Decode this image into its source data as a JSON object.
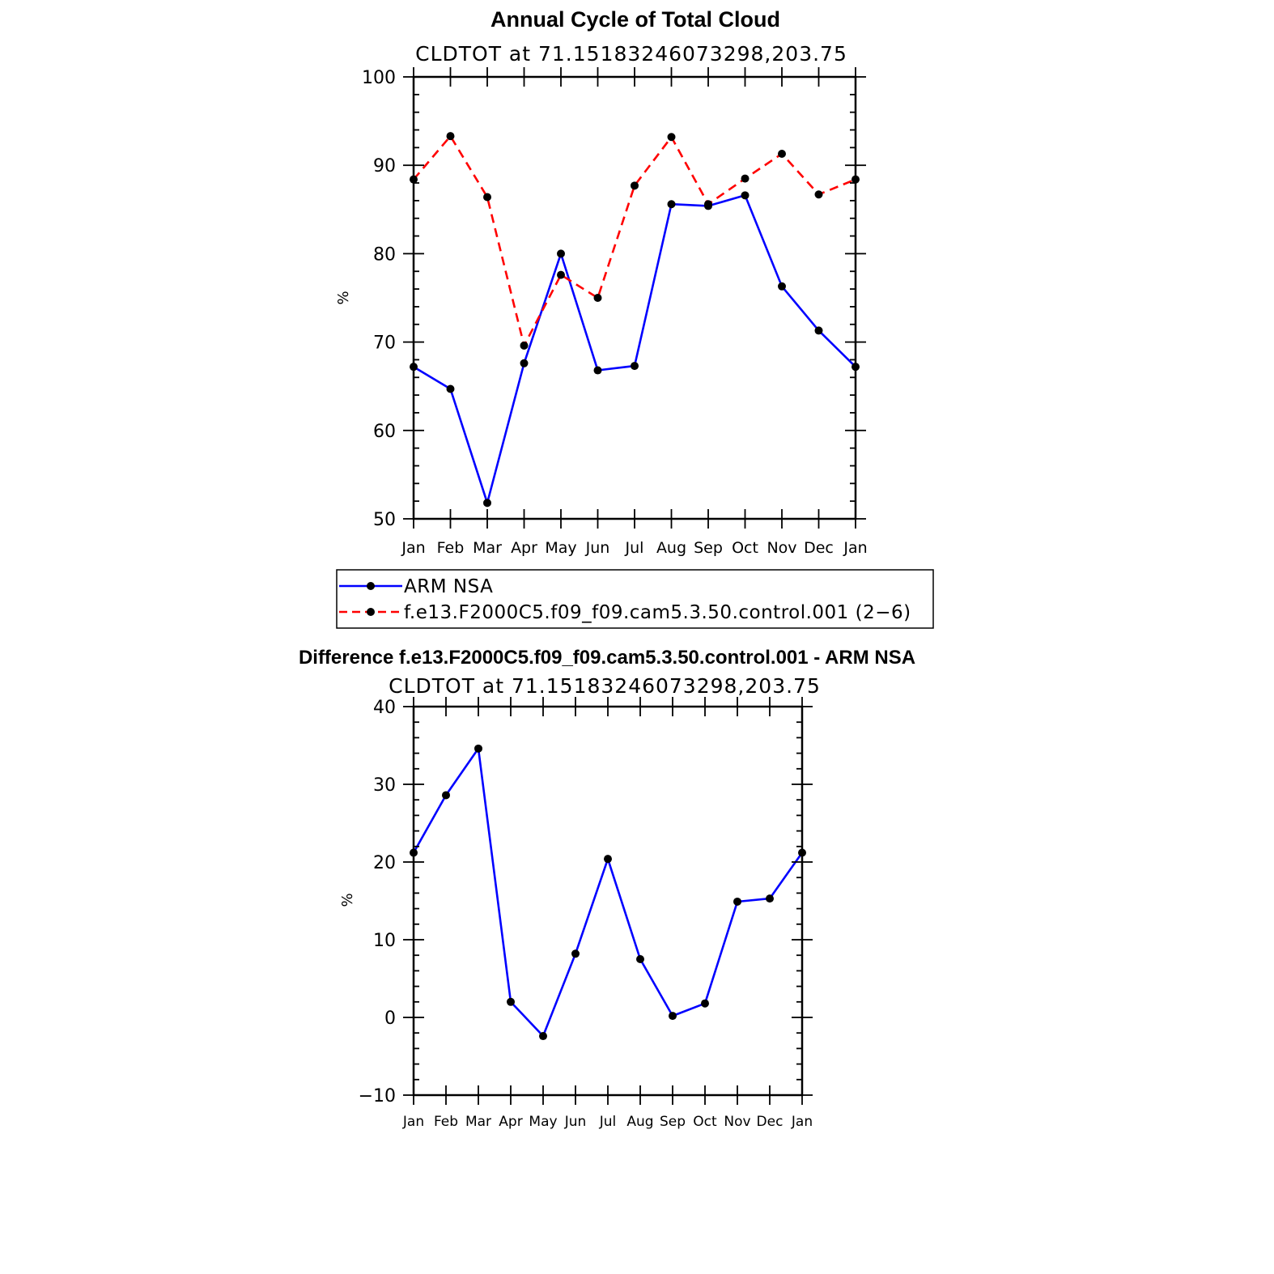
{
  "chart_data": [
    {
      "type": "line",
      "title": "Annual Cycle of Total Cloud",
      "subtitle": "CLDTOT at 71.15183246073298,203.75",
      "xlabel": "",
      "ylabel": "%",
      "ylim": [
        50,
        100
      ],
      "yticks": [
        "100",
        "90",
        "80",
        "70",
        "60",
        "50"
      ],
      "categories": [
        "Jan",
        "Feb",
        "Mar",
        "Apr",
        "May",
        "Jun",
        "Jul",
        "Aug",
        "Sep",
        "Oct",
        "Nov",
        "Dec",
        "Jan"
      ],
      "legend_position": "bottom",
      "series": [
        {
          "name": "ARM NSA",
          "color": "#0000ff",
          "style": "solid",
          "values": [
            67.2,
            64.7,
            51.8,
            67.6,
            80.0,
            66.8,
            67.3,
            85.6,
            85.4,
            86.6,
            76.3,
            71.3,
            67.2
          ]
        },
        {
          "name": "f.e13.F2000C5.f09_f09.cam5.3.50.control.001 (2−6)",
          "color": "#ff0000",
          "style": "dashed",
          "values": [
            88.4,
            93.3,
            86.4,
            69.6,
            77.6,
            75.0,
            87.7,
            93.2,
            85.6,
            88.5,
            91.3,
            86.7,
            88.4
          ]
        }
      ]
    },
    {
      "type": "line",
      "title": "Difference f.e13.F2000C5.f09_f09.cam5.3.50.control.001 - ARM NSA",
      "subtitle": "CLDTOT at 71.15183246073298,203.75",
      "xlabel": "",
      "ylabel": "%",
      "ylim": [
        -10,
        40
      ],
      "yticks": [
        "40",
        "30",
        "20",
        "10",
        "0",
        "−10"
      ],
      "categories": [
        "Jan",
        "Feb",
        "Mar",
        "Apr",
        "May",
        "Jun",
        "Jul",
        "Aug",
        "Sep",
        "Oct",
        "Nov",
        "Dec",
        "Jan"
      ],
      "series": [
        {
          "color": "#0000ff",
          "style": "solid",
          "values": [
            21.2,
            28.6,
            34.6,
            2.0,
            -2.4,
            8.2,
            20.4,
            7.5,
            0.2,
            1.8,
            14.9,
            15.3,
            21.2
          ]
        }
      ]
    }
  ]
}
